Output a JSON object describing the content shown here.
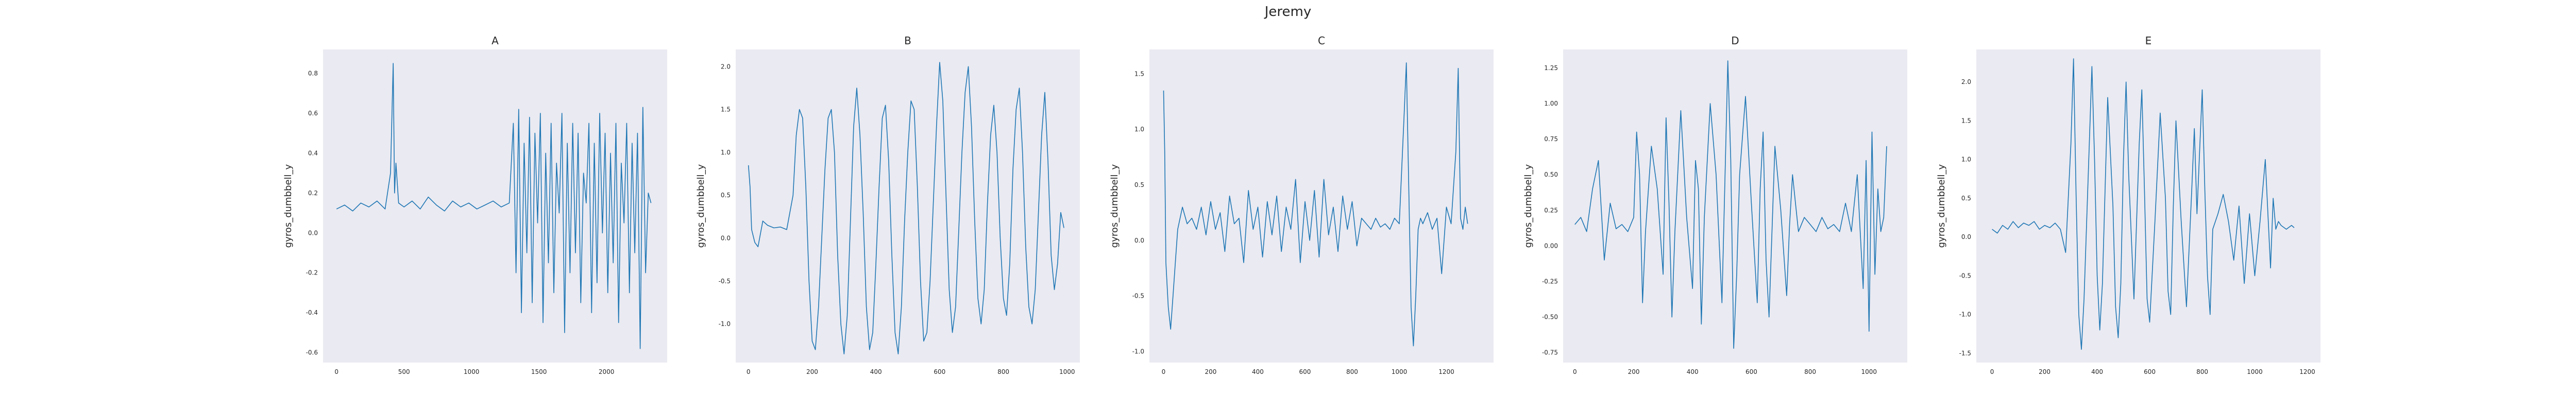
{
  "suptitle": "Jeremy",
  "colors": {
    "axes_bg": "#eaeaf2",
    "line": "#1f77b4",
    "grid": "#ffffff"
  },
  "chart_data": [
    {
      "type": "line",
      "title": "A",
      "xlabel": "",
      "ylabel": "gyros_dumbbell_y",
      "xlim": [
        -100,
        2450
      ],
      "ylim": [
        -0.65,
        0.92
      ],
      "xticks": [
        0,
        500,
        1000,
        1500,
        2000
      ],
      "yticks": [
        -0.6,
        -0.4,
        -0.2,
        0.0,
        0.2,
        0.4,
        0.6,
        0.8
      ],
      "ytick_labels": [
        "-0.6",
        "-0.4",
        "-0.2",
        "0.0",
        "0.2",
        "0.4",
        "0.6",
        "0.8"
      ],
      "grid": false,
      "series": [
        {
          "x": [
            0,
            60,
            120,
            180,
            240,
            300,
            360,
            400,
            420,
            430,
            440,
            460,
            500,
            560,
            620,
            680,
            740,
            800,
            860,
            920,
            980,
            1040,
            1100,
            1160,
            1220,
            1280,
            1310,
            1330,
            1350,
            1370,
            1390,
            1410,
            1430,
            1450,
            1470,
            1490,
            1510,
            1530,
            1550,
            1570,
            1590,
            1610,
            1630,
            1650,
            1670,
            1690,
            1710,
            1730,
            1750,
            1770,
            1790,
            1810,
            1830,
            1850,
            1870,
            1890,
            1910,
            1930,
            1950,
            1970,
            1990,
            2010,
            2030,
            2050,
            2070,
            2090,
            2110,
            2130,
            2150,
            2170,
            2190,
            2210,
            2230,
            2250,
            2270,
            2290,
            2310,
            2330
          ],
          "y": [
            0.12,
            0.14,
            0.11,
            0.15,
            0.13,
            0.16,
            0.12,
            0.3,
            0.85,
            0.2,
            0.35,
            0.15,
            0.13,
            0.16,
            0.12,
            0.18,
            0.14,
            0.11,
            0.16,
            0.13,
            0.15,
            0.12,
            0.14,
            0.16,
            0.13,
            0.15,
            0.55,
            -0.2,
            0.62,
            -0.4,
            0.45,
            -0.1,
            0.58,
            -0.35,
            0.5,
            0.05,
            0.6,
            -0.45,
            0.4,
            -0.15,
            0.55,
            -0.3,
            0.35,
            0.1,
            0.6,
            -0.5,
            0.45,
            -0.2,
            0.55,
            -0.1,
            0.5,
            -0.35,
            0.3,
            0.15,
            0.55,
            -0.4,
            0.45,
            -0.25,
            0.6,
            0.0,
            0.5,
            -0.3,
            0.4,
            -0.15,
            0.55,
            -0.45,
            0.35,
            0.05,
            0.55,
            -0.3,
            0.45,
            -0.1,
            0.5,
            -0.58,
            0.63,
            -0.2,
            0.2,
            0.15
          ]
        }
      ]
    },
    {
      "type": "line",
      "title": "B",
      "xlabel": "",
      "ylabel": "gyros_dumbbell_y",
      "xlim": [
        -40,
        1040
      ],
      "ylim": [
        -1.45,
        2.2
      ],
      "xticks": [
        0,
        200,
        400,
        600,
        800,
        1000
      ],
      "yticks": [
        -1.0,
        -0.5,
        0.0,
        0.5,
        1.0,
        1.5,
        2.0
      ],
      "ytick_labels": [
        "-1.0",
        "-0.5",
        "0.0",
        "0.5",
        "1.0",
        "1.5",
        "2.0"
      ],
      "grid": false,
      "series": [
        {
          "x": [
            0,
            5,
            10,
            20,
            30,
            45,
            60,
            80,
            100,
            120,
            140,
            150,
            160,
            170,
            180,
            190,
            200,
            210,
            220,
            230,
            240,
            250,
            260,
            270,
            280,
            290,
            300,
            310,
            320,
            330,
            340,
            350,
            360,
            370,
            380,
            390,
            400,
            410,
            420,
            430,
            440,
            450,
            460,
            470,
            480,
            490,
            500,
            510,
            520,
            530,
            540,
            550,
            560,
            570,
            580,
            590,
            600,
            610,
            620,
            630,
            640,
            650,
            660,
            670,
            680,
            690,
            700,
            710,
            720,
            730,
            740,
            750,
            760,
            770,
            780,
            790,
            800,
            810,
            820,
            830,
            840,
            850,
            860,
            870,
            880,
            890,
            900,
            910,
            920,
            930,
            940,
            950,
            960,
            970,
            980,
            990
          ],
          "y": [
            0.85,
            0.6,
            0.1,
            -0.05,
            -0.1,
            0.2,
            0.15,
            0.12,
            0.13,
            0.1,
            0.5,
            1.2,
            1.5,
            1.4,
            0.6,
            -0.5,
            -1.2,
            -1.3,
            -0.8,
            0.0,
            0.8,
            1.4,
            1.5,
            1.0,
            -0.2,
            -1.0,
            -1.35,
            -0.9,
            0.2,
            1.3,
            1.75,
            1.2,
            0.3,
            -0.8,
            -1.3,
            -1.1,
            -0.3,
            0.6,
            1.4,
            1.55,
            0.9,
            -0.2,
            -1.1,
            -1.35,
            -0.8,
            0.2,
            1.0,
            1.6,
            1.5,
            0.6,
            -0.5,
            -1.2,
            -1.1,
            -0.5,
            0.4,
            1.3,
            2.05,
            1.6,
            0.5,
            -0.6,
            -1.1,
            -0.8,
            0.1,
            1.0,
            1.7,
            2.0,
            1.3,
            0.2,
            -0.7,
            -1.0,
            -0.6,
            0.4,
            1.2,
            1.55,
            1.0,
            0.0,
            -0.7,
            -0.9,
            -0.3,
            0.8,
            1.5,
            1.75,
            1.0,
            -0.1,
            -0.8,
            -1.0,
            -0.6,
            0.3,
            1.2,
            1.7,
            0.9,
            -0.2,
            -0.6,
            -0.3,
            0.3,
            0.12
          ]
        }
      ]
    },
    {
      "type": "line",
      "title": "C",
      "xlabel": "",
      "ylabel": "gyros_dumbbell_y",
      "xlim": [
        -60,
        1400
      ],
      "ylim": [
        -1.1,
        1.72
      ],
      "xticks": [
        0,
        200,
        400,
        600,
        800,
        1000,
        1200
      ],
      "yticks": [
        -1.0,
        -0.5,
        0.0,
        0.5,
        1.0,
        1.5
      ],
      "ytick_labels": [
        "-1.0",
        "-0.5",
        "0.0",
        "0.5",
        "1.0",
        "1.5"
      ],
      "grid": false,
      "series": [
        {
          "x": [
            0,
            5,
            10,
            20,
            30,
            40,
            50,
            60,
            80,
            100,
            120,
            140,
            160,
            180,
            200,
            220,
            240,
            260,
            280,
            300,
            320,
            340,
            360,
            380,
            400,
            420,
            440,
            460,
            480,
            500,
            520,
            540,
            560,
            580,
            600,
            620,
            640,
            660,
            680,
            700,
            720,
            740,
            760,
            780,
            800,
            820,
            840,
            860,
            880,
            900,
            920,
            940,
            960,
            980,
            1000,
            1020,
            1030,
            1040,
            1050,
            1060,
            1070,
            1080,
            1090,
            1100,
            1120,
            1140,
            1160,
            1180,
            1200,
            1220,
            1240,
            1250,
            1260,
            1270,
            1280,
            1290
          ],
          "y": [
            1.35,
            0.8,
            -0.2,
            -0.6,
            -0.8,
            -0.5,
            -0.2,
            0.1,
            0.3,
            0.15,
            0.2,
            0.1,
            0.3,
            0.05,
            0.35,
            0.1,
            0.25,
            -0.1,
            0.4,
            0.15,
            0.2,
            -0.2,
            0.45,
            0.1,
            0.3,
            -0.15,
            0.35,
            0.05,
            0.4,
            -0.1,
            0.3,
            0.1,
            0.55,
            -0.2,
            0.35,
            0.0,
            0.45,
            -0.15,
            0.55,
            0.05,
            0.3,
            -0.1,
            0.4,
            0.1,
            0.35,
            -0.05,
            0.2,
            0.15,
            0.1,
            0.2,
            0.12,
            0.15,
            0.1,
            0.2,
            0.15,
            1.1,
            1.6,
            0.5,
            -0.6,
            -0.95,
            -0.5,
            0.1,
            0.2,
            0.15,
            0.25,
            0.1,
            0.2,
            -0.3,
            0.3,
            0.15,
            0.8,
            1.55,
            0.2,
            0.1,
            0.3,
            0.15
          ]
        }
      ]
    },
    {
      "type": "line",
      "title": "D",
      "xlabel": "",
      "ylabel": "gyros_dumbbell_y",
      "xlim": [
        -40,
        1130
      ],
      "ylim": [
        -0.82,
        1.38
      ],
      "xticks": [
        0,
        200,
        400,
        600,
        800,
        1000
      ],
      "yticks": [
        -0.75,
        -0.5,
        -0.25,
        0.0,
        0.25,
        0.5,
        0.75,
        1.0,
        1.25
      ],
      "ytick_labels": [
        "-0.75",
        "-0.50",
        "-0.25",
        "0.00",
        "0.25",
        "0.50",
        "0.75",
        "1.00",
        "1.25"
      ],
      "grid": false,
      "series": [
        {
          "x": [
            0,
            20,
            40,
            60,
            80,
            100,
            120,
            140,
            160,
            180,
            200,
            210,
            220,
            230,
            240,
            260,
            280,
            300,
            310,
            320,
            330,
            340,
            360,
            380,
            400,
            410,
            420,
            430,
            440,
            460,
            480,
            500,
            520,
            530,
            540,
            550,
            560,
            580,
            600,
            620,
            630,
            640,
            650,
            660,
            680,
            700,
            720,
            730,
            740,
            750,
            760,
            780,
            800,
            820,
            840,
            860,
            880,
            900,
            920,
            940,
            960,
            980,
            990,
            1000,
            1010,
            1020,
            1030,
            1040,
            1050,
            1060
          ],
          "y": [
            0.15,
            0.2,
            0.1,
            0.4,
            0.6,
            -0.1,
            0.3,
            0.12,
            0.15,
            0.1,
            0.2,
            0.8,
            0.5,
            -0.4,
            0.1,
            0.7,
            0.4,
            -0.2,
            0.9,
            0.3,
            -0.5,
            0.1,
            0.95,
            0.2,
            -0.3,
            0.6,
            0.4,
            -0.55,
            0.2,
            1.0,
            0.5,
            -0.4,
            1.3,
            0.6,
            -0.72,
            -0.2,
            0.5,
            1.05,
            0.3,
            -0.4,
            0.4,
            0.8,
            -0.1,
            -0.5,
            0.7,
            0.25,
            -0.35,
            0.15,
            0.5,
            0.3,
            0.1,
            0.2,
            0.15,
            0.1,
            0.2,
            0.12,
            0.15,
            0.1,
            0.3,
            0.1,
            0.5,
            -0.3,
            0.6,
            -0.6,
            0.8,
            -0.2,
            0.4,
            0.1,
            0.2,
            0.7
          ]
        }
      ]
    },
    {
      "type": "line",
      "title": "E",
      "xlabel": "",
      "ylabel": "gyros_dumbbell_y",
      "xlim": [
        -60,
        1250
      ],
      "ylim": [
        -1.62,
        2.42
      ],
      "xticks": [
        0,
        200,
        400,
        600,
        800,
        1000,
        1200
      ],
      "yticks": [
        -1.5,
        -1.0,
        -0.5,
        0.0,
        0.5,
        1.0,
        1.5,
        2.0
      ],
      "ytick_labels": [
        "-1.5",
        "-1.0",
        "-0.5",
        "0.0",
        "0.5",
        "1.0",
        "1.5",
        "2.0"
      ],
      "grid": false,
      "series": [
        {
          "x": [
            0,
            20,
            40,
            60,
            80,
            100,
            120,
            140,
            160,
            180,
            200,
            220,
            240,
            260,
            280,
            300,
            310,
            320,
            330,
            340,
            350,
            360,
            380,
            390,
            400,
            410,
            420,
            430,
            440,
            460,
            470,
            480,
            490,
            500,
            510,
            520,
            540,
            560,
            570,
            580,
            590,
            600,
            620,
            640,
            660,
            670,
            680,
            690,
            700,
            720,
            740,
            760,
            770,
            780,
            800,
            810,
            820,
            830,
            840,
            860,
            880,
            900,
            920,
            940,
            960,
            980,
            1000,
            1020,
            1040,
            1060,
            1070,
            1080,
            1090,
            1100,
            1120,
            1140,
            1150
          ],
          "y": [
            0.1,
            0.05,
            0.15,
            0.1,
            0.2,
            0.12,
            0.18,
            0.15,
            0.2,
            0.1,
            0.15,
            0.12,
            0.18,
            0.1,
            -0.2,
            1.2,
            2.3,
            0.5,
            -1.0,
            -1.45,
            -0.8,
            0.2,
            2.2,
            1.0,
            -0.5,
            -1.2,
            -0.6,
            0.6,
            1.8,
            0.4,
            -0.9,
            -1.3,
            -0.6,
            1.0,
            2.0,
            0.8,
            -0.8,
            1.2,
            1.9,
            0.6,
            -0.8,
            -1.1,
            0.2,
            1.6,
            0.5,
            -0.7,
            -1.0,
            0.4,
            1.5,
            0.2,
            -0.9,
            0.6,
            1.4,
            0.3,
            1.9,
            0.6,
            -0.5,
            -1.0,
            0.1,
            0.3,
            0.55,
            0.2,
            -0.3,
            0.4,
            -0.6,
            0.3,
            -0.5,
            0.2,
            1.0,
            -0.4,
            0.5,
            0.1,
            0.2,
            0.15,
            0.1,
            0.15,
            0.12
          ]
        }
      ]
    }
  ]
}
